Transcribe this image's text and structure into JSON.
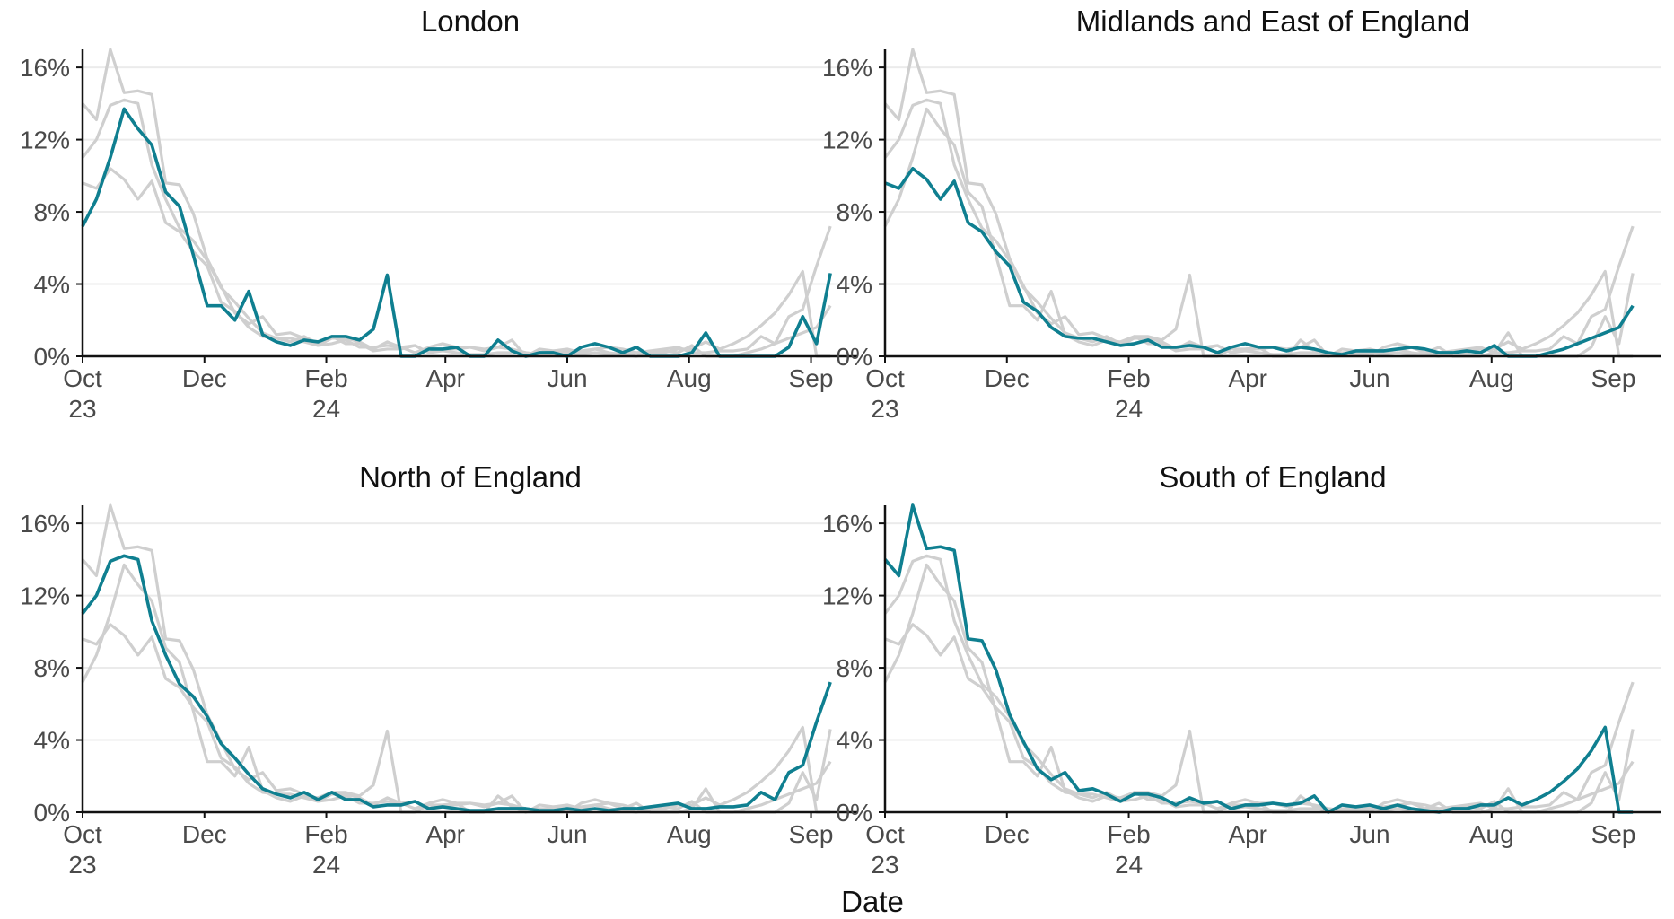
{
  "chart_data": {
    "type": "line",
    "xlabel": "Date",
    "ylabel": "",
    "ylim": [
      0,
      0.17
    ],
    "y_ticks": [
      "0%",
      "4%",
      "8%",
      "12%",
      "16%"
    ],
    "y_tick_values": [
      0,
      0.04,
      0.08,
      0.12,
      0.16
    ],
    "x_tick_labels": [
      [
        "Oct",
        "23"
      ],
      [
        "Dec",
        ""
      ],
      [
        "Feb",
        "24"
      ],
      [
        "Apr",
        ""
      ],
      [
        "Jun",
        ""
      ],
      [
        "Aug",
        ""
      ],
      [
        "Sep",
        ""
      ]
    ],
    "x_tick_positions": [
      0,
      8.8,
      17.6,
      26.2,
      35,
      43.8,
      52.6
    ],
    "x_range": [
      0,
      56
    ],
    "grid": "horizontal",
    "colors": {
      "highlight": "#0f7f90",
      "background": "#cfcfcf",
      "gridline": "#ebebeb",
      "axis": "#111111"
    },
    "panels": [
      {
        "title": "London",
        "values": [
          0.072,
          0.087,
          0.11,
          0.137,
          0.126,
          0.117,
          0.091,
          0.083,
          0.056,
          0.028,
          0.028,
          0.02,
          0.036,
          0.012,
          0.008,
          0.006,
          0.009,
          0.008,
          0.011,
          0.011,
          0.009,
          0.015,
          0.045,
          0.0,
          -0.003,
          0.004,
          0.004,
          0.005,
          0.0,
          0.0,
          0.009,
          0.003,
          0.0,
          0.002,
          0.002,
          0.0,
          0.005,
          0.007,
          0.005,
          0.002,
          0.005,
          0.0,
          0.0,
          0.0,
          0.002,
          0.013,
          0.0,
          0.0,
          0.0,
          0.0,
          0.0,
          0.005,
          0.022,
          0.007,
          0.046
        ]
      },
      {
        "title": "Midlands and East of England",
        "values": [
          0.096,
          0.093,
          0.104,
          0.098,
          0.087,
          0.097,
          0.074,
          0.069,
          0.058,
          0.05,
          0.03,
          0.025,
          0.016,
          0.011,
          0.01,
          0.01,
          0.008,
          0.006,
          0.007,
          0.009,
          0.005,
          0.005,
          0.006,
          0.005,
          0.002,
          0.005,
          0.007,
          0.005,
          0.005,
          0.003,
          0.005,
          0.004,
          0.002,
          0.001,
          0.003,
          0.003,
          0.003,
          0.004,
          0.005,
          0.004,
          0.002,
          0.002,
          0.003,
          0.002,
          0.006,
          0.0,
          0.0,
          0.0,
          0.002,
          0.004,
          0.007,
          0.01,
          0.013,
          0.016,
          0.028
        ]
      },
      {
        "title": "North of England",
        "values": [
          0.11,
          0.12,
          0.139,
          0.142,
          0.14,
          0.106,
          0.087,
          0.071,
          0.064,
          0.053,
          0.038,
          0.03,
          0.021,
          0.013,
          0.01,
          0.008,
          0.011,
          0.007,
          0.011,
          0.007,
          0.007,
          0.003,
          0.004,
          0.004,
          0.006,
          0.002,
          0.003,
          0.002,
          0.001,
          0.001,
          0.002,
          0.002,
          0.002,
          0.001,
          0.001,
          0.002,
          0.001,
          0.002,
          0.001,
          0.002,
          0.002,
          0.003,
          0.004,
          0.005,
          0.002,
          0.002,
          0.003,
          0.003,
          0.004,
          0.011,
          0.007,
          0.022,
          0.026,
          0.05,
          0.072
        ]
      },
      {
        "title": "South of England",
        "values": [
          0.14,
          0.131,
          0.17,
          0.146,
          0.147,
          0.145,
          0.096,
          0.095,
          0.079,
          0.054,
          0.039,
          0.024,
          0.018,
          0.022,
          0.012,
          0.013,
          0.01,
          0.006,
          0.01,
          0.01,
          0.008,
          0.004,
          0.008,
          0.005,
          0.006,
          0.002,
          0.004,
          0.004,
          0.005,
          0.004,
          0.005,
          0.009,
          0.0,
          0.004,
          0.003,
          0.004,
          0.002,
          0.004,
          0.002,
          0.001,
          0.0,
          0.002,
          0.002,
          0.004,
          0.004,
          0.008,
          0.004,
          0.007,
          0.011,
          0.017,
          0.024,
          0.034,
          0.047,
          0.0,
          0.0
        ]
      }
    ]
  }
}
